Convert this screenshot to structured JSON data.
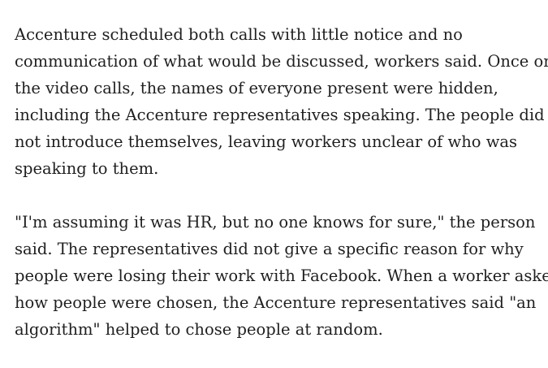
{
  "article": {
    "paragraphs": [
      {
        "lines": [
          "Accenture scheduled both calls with little notice and no",
          "communication of what would be discussed, workers said. Once on",
          "the video calls, the names of everyone present were hidden,",
          "including the Accenture representatives speaking. The people did",
          "not introduce themselves, leaving workers unclear of who was",
          "speaking to them."
        ]
      },
      {
        "lines": [
          "\"I'm assuming it was HR, but no one knows for sure,\" the person",
          "said. The representatives did not give a specific reason for why",
          "people were losing their work with Facebook. When a worker asked",
          "how people were chosen, the Accenture representatives said \"an",
          "algorithm\" helped to chose people at random."
        ]
      }
    ]
  }
}
